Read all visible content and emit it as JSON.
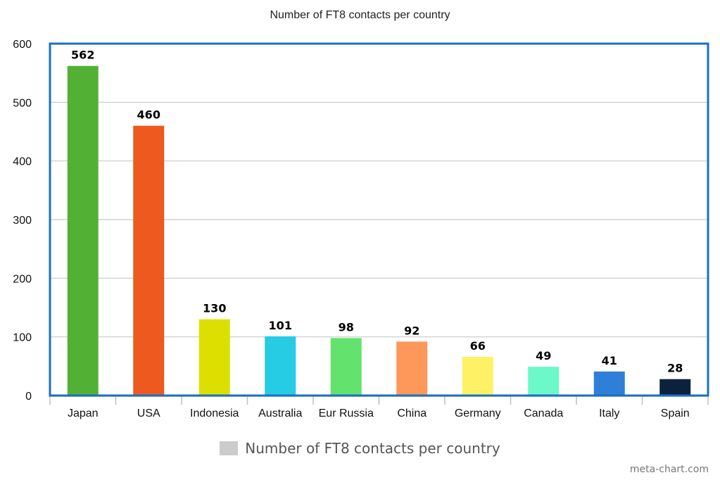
{
  "chart_data": {
    "type": "bar",
    "title": "Number of FT8 contacts per country",
    "categories": [
      "Japan",
      "USA",
      "Indonesia",
      "Australia",
      "Eur Russia",
      "China",
      "Germany",
      "Canada",
      "Italy",
      "Spain"
    ],
    "values": [
      562,
      460,
      130,
      101,
      98,
      92,
      66,
      49,
      41,
      28
    ],
    "bar_colors": [
      "#52b135",
      "#ee591f",
      "#dcdf00",
      "#25cce4",
      "#63e36e",
      "#fe975a",
      "#fef165",
      "#6cf8c9",
      "#2f7fd9",
      "#0c223c"
    ],
    "ylim": [
      0,
      600
    ],
    "yticks": [
      0,
      100,
      200,
      300,
      400,
      500,
      600
    ],
    "grid": true,
    "legend": {
      "position": "bottom",
      "label": "Number of FT8 contacts per country",
      "color": "#cccccc"
    },
    "frame_color": "#1a6fc4"
  },
  "footer": {
    "credit": "meta-chart.com"
  }
}
